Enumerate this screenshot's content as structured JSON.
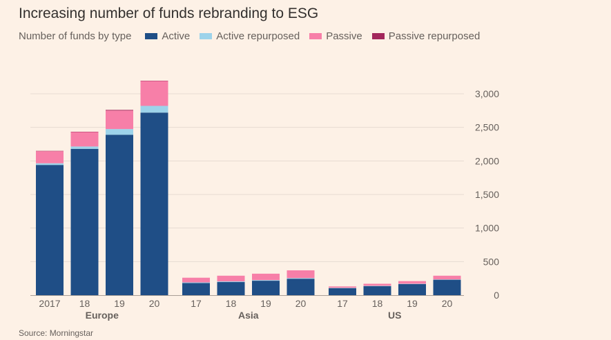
{
  "title": "Increasing number of funds rebranding to ESG",
  "subtitle": "Number of funds by type",
  "source": "Source: Morningstar",
  "colors": {
    "background": "#fdf1e6",
    "grid": "#e6dbd2",
    "tick_text": "#66605c"
  },
  "legend_items": [
    {
      "label": "Active",
      "color": "#1f4e86"
    },
    {
      "label": "Active repurposed",
      "color": "#9dd3ea"
    },
    {
      "label": "Passive",
      "color": "#f77fa8"
    },
    {
      "label": "Passive repurposed",
      "color": "#a3275c"
    }
  ],
  "chart_data": {
    "type": "bar",
    "stacked": true,
    "title": "Increasing number of funds rebranding to ESG",
    "subtitle": "Number of funds by type",
    "y_axis_position": "right",
    "ylim": [
      0,
      3000
    ],
    "yticks": [
      0,
      500,
      1000,
      1500,
      2000,
      2500,
      3000
    ],
    "ytick_labels": [
      "0",
      "500",
      "1,000",
      "1,500",
      "2,000",
      "2,500",
      "3,000"
    ],
    "grid": true,
    "legend_position": "top",
    "groups": [
      {
        "name": "Europe",
        "categories": [
          "2017",
          "18",
          "19",
          "20"
        ]
      },
      {
        "name": "Asia",
        "categories": [
          "17",
          "18",
          "19",
          "20"
        ]
      },
      {
        "name": "US",
        "categories": [
          "17",
          "18",
          "19",
          "20"
        ]
      }
    ],
    "series": [
      {
        "name": "Active",
        "color": "#1f4e86",
        "values": [
          1940,
          2180,
          2390,
          2720,
          180,
          195,
          215,
          245,
          105,
          135,
          165,
          230
        ]
      },
      {
        "name": "Active repurposed",
        "color": "#9dd3ea",
        "values": [
          25,
          35,
          85,
          100,
          10,
          10,
          10,
          10,
          5,
          5,
          5,
          5
        ]
      },
      {
        "name": "Passive",
        "color": "#f77fa8",
        "values": [
          180,
          215,
          275,
          370,
          70,
          85,
          95,
          115,
          20,
          30,
          40,
          55
        ]
      },
      {
        "name": "Passive repurposed",
        "color": "#a3275c",
        "values": [
          5,
          5,
          10,
          5,
          0,
          0,
          0,
          0,
          0,
          0,
          0,
          0
        ]
      }
    ]
  }
}
